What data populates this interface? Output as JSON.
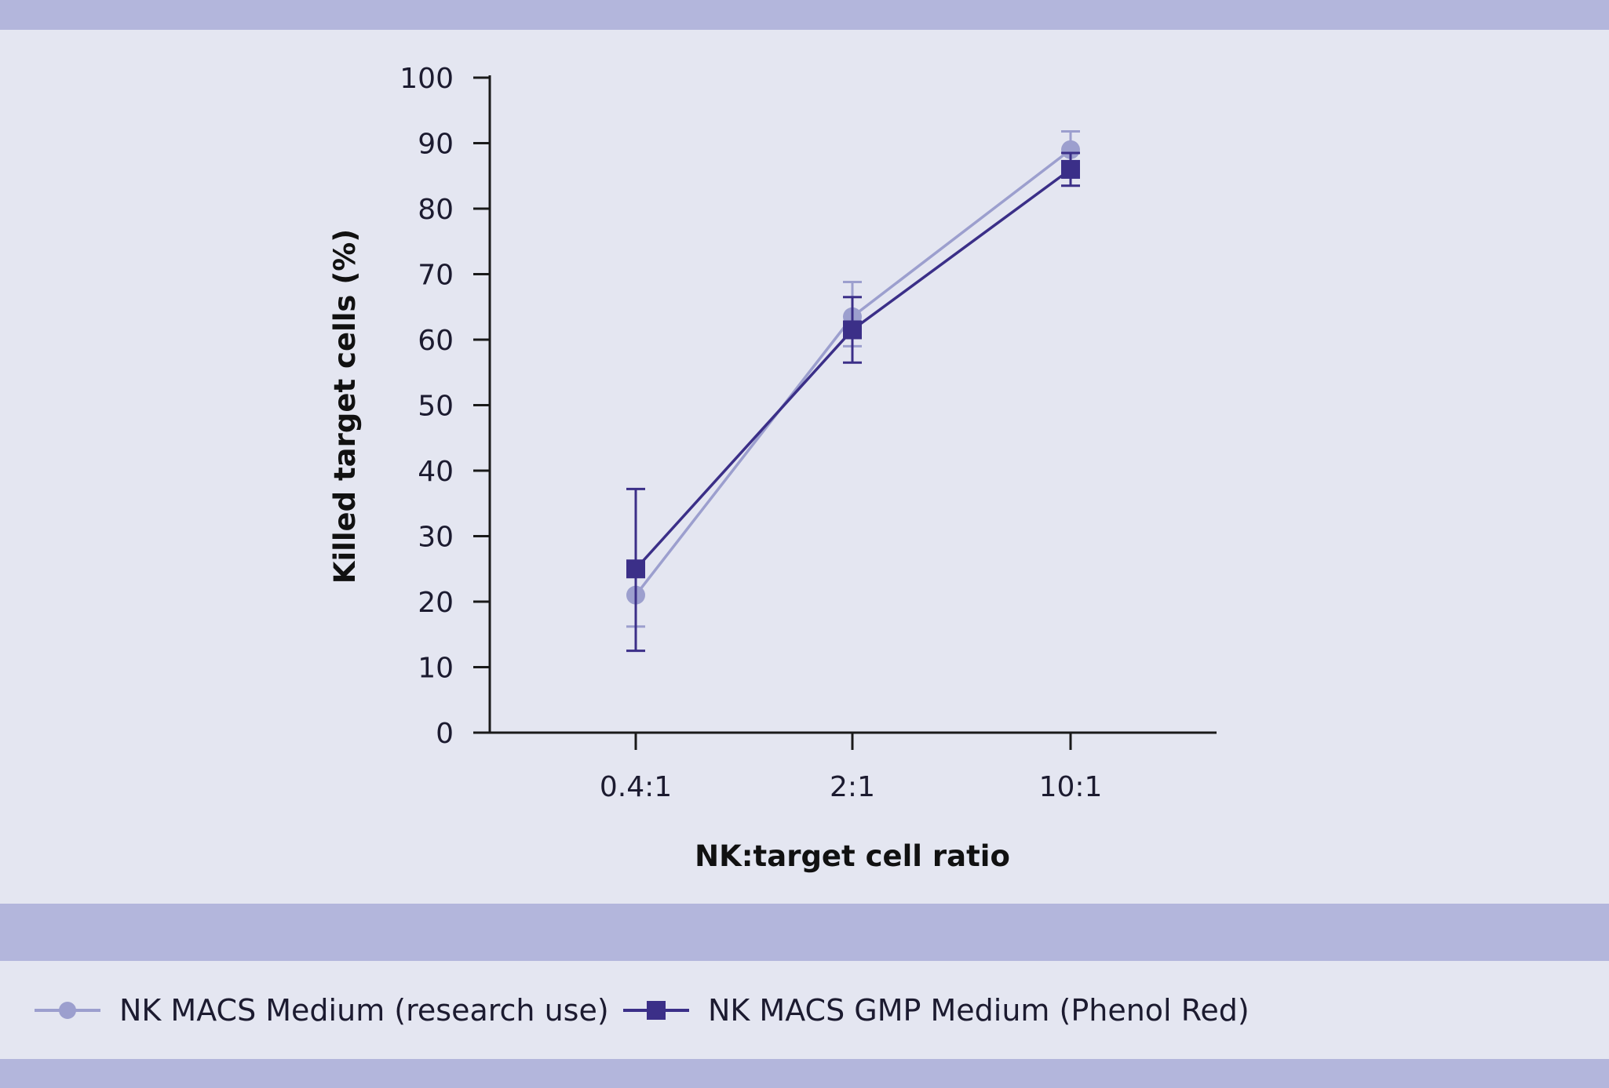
{
  "colors": {
    "band": "#b3b6dc",
    "panel": "#e4e6f1",
    "axis": "#1a1a1a",
    "series_research": "#9c9fce",
    "series_gmp": "#3b2f88"
  },
  "chart_data": {
    "type": "line",
    "title": "",
    "xlabel": "NK:target cell ratio",
    "ylabel": "Killed target cells (%)",
    "categories": [
      "0.4:1",
      "2:1",
      "10:1"
    ],
    "ylim": [
      0,
      100
    ],
    "yticks": [
      0,
      10,
      20,
      30,
      40,
      50,
      60,
      70,
      80,
      90,
      100
    ],
    "grid": false,
    "legend_position": "bottom",
    "series": [
      {
        "name": "NK MACS Medium (research use)",
        "marker": "circle",
        "color": "#9c9fce",
        "values": [
          21,
          63.5,
          89
        ],
        "error": [
          [
            16.2,
            25
          ],
          [
            59,
            68.8
          ],
          [
            86,
            91.8
          ]
        ]
      },
      {
        "name": "NK MACS GMP Medium (Phenol Red)",
        "marker": "square",
        "color": "#3b2f88",
        "values": [
          25,
          61.5,
          86
        ],
        "error": [
          [
            12.5,
            37.2
          ],
          [
            56.5,
            66.5
          ],
          [
            83.5,
            88.5
          ]
        ]
      }
    ]
  }
}
